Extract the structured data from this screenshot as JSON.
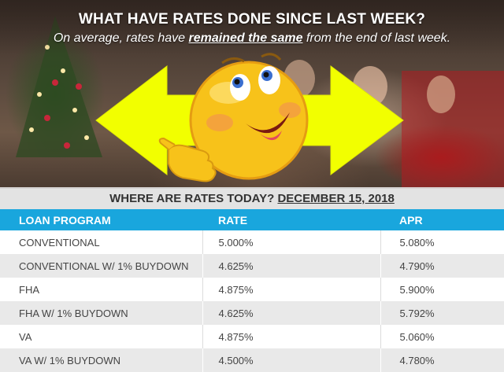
{
  "header": {
    "headline": "WHAT HAVE RATES DONE SINCE LAST WEEK?",
    "subline_before": "On average, rates have ",
    "subline_emphasis": "remained the same",
    "subline_after": " from the end of last week."
  },
  "date_band": {
    "label": "WHERE ARE RATES TODAY? ",
    "date": "DECEMBER 15, 2018"
  },
  "table": {
    "columns": [
      "LOAN PROGRAM",
      "RATE",
      "APR"
    ],
    "rows": [
      [
        "CONVENTIONAL",
        "5.000%",
        "5.080%"
      ],
      [
        "CONVENTIONAL W/ 1% BUYDOWN",
        "4.625%",
        "4.790%"
      ],
      [
        "FHA",
        "4.875%",
        "5.900%"
      ],
      [
        "FHA W/ 1% BUYDOWN",
        "4.625%",
        "5.792%"
      ],
      [
        "VA",
        "4.875%",
        "5.060%"
      ],
      [
        "VA W/ 1% BUYDOWN",
        "4.500%",
        "4.780%"
      ]
    ]
  },
  "colors": {
    "header_blue": "#19a6dd",
    "arrow_yellow": "#f2ff00",
    "emoji_yellow": "#f7c21a"
  },
  "icons": [
    "double-arrow-icon",
    "smiley-emoji-icon",
    "pointing-hand-icon"
  ]
}
